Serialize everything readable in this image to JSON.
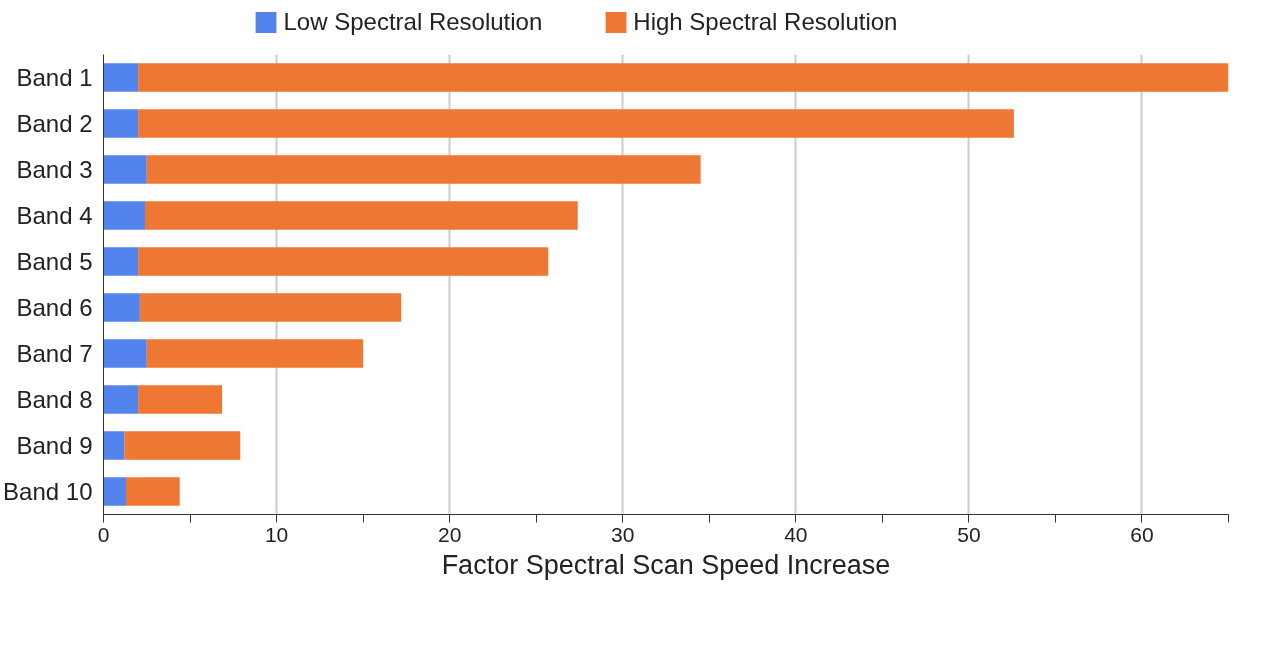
{
  "chart_data": {
    "type": "bar",
    "orientation": "horizontal",
    "stacked": true,
    "xlabel": "Factor Spectral Scan Speed Increase",
    "categories": [
      "Band 1",
      "Band 2",
      "Band 3",
      "Band 4",
      "Band 5",
      "Band 6",
      "Band 7",
      "Band 8",
      "Band 9",
      "Band 10"
    ],
    "series": [
      {
        "name": "Low Spectral Resolution",
        "color": "#5383ec",
        "values": [
          2,
          2,
          2.5,
          2.4,
          2,
          2.1,
          2.5,
          2,
          1.2,
          1.3
        ]
      },
      {
        "name": "High Spectral Resolution",
        "color": "#ee7733",
        "values": [
          63,
          50.6,
          32,
          25,
          23.7,
          15.1,
          12.5,
          4.85,
          6.7,
          3.1
        ]
      }
    ],
    "xlim": [
      0,
      65
    ],
    "xticks": [
      0,
      {
        "value": 5,
        "label": null
      },
      10,
      {
        "value": 15,
        "label": null
      },
      20,
      {
        "value": 25,
        "label": null
      },
      30,
      {
        "value": 35,
        "label": null
      },
      40,
      {
        "value": 45,
        "label": null
      },
      50,
      {
        "value": 55,
        "label": null
      },
      60,
      {
        "value": 65,
        "label": null
      }
    ],
    "grid": "x",
    "legend": "top"
  }
}
